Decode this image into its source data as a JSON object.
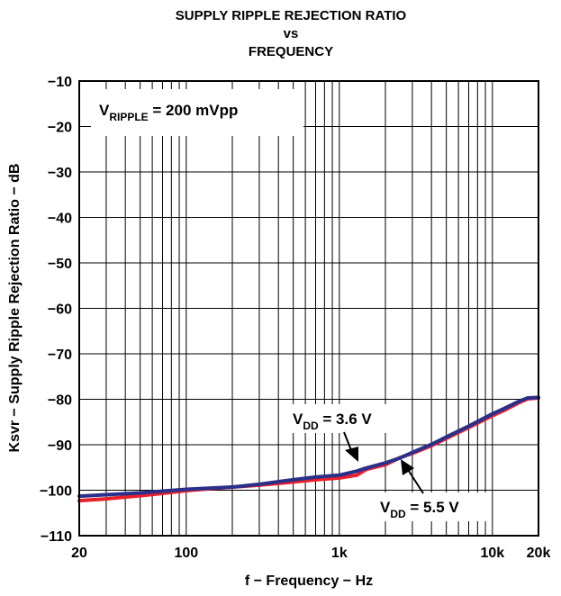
{
  "chart_data": {
    "type": "line",
    "title_lines": [
      "SUPPLY RIPPLE REJECTION RATIO",
      "vs",
      "FREQUENCY"
    ],
    "xlabel": "f − Frequency − Hz",
    "ylabel": "Ksvr − Supply Ripple Rejection Ratio − dB",
    "x_scale": "log",
    "xlim": [
      20,
      20000
    ],
    "ylim": [
      -110,
      -10
    ],
    "x_ticks": [
      20,
      100,
      1000,
      10000,
      20000
    ],
    "x_tick_labels": [
      "20",
      "100",
      "1k",
      "10k",
      "20k"
    ],
    "y_ticks": [
      -10,
      -20,
      -30,
      -40,
      -50,
      -60,
      -70,
      -80,
      -90,
      -100,
      -110
    ],
    "y_tick_labels": [
      "−10",
      "−20",
      "−30",
      "−40",
      "−50",
      "−60",
      "−70",
      "−80",
      "−90",
      "−100",
      "−110"
    ],
    "grid": true,
    "series": [
      {
        "color": "#e8202a",
        "x": [
          20,
          30,
          50,
          70,
          100,
          150,
          200,
          300,
          500,
          700,
          1000,
          1300,
          1500,
          2000,
          2500,
          3000,
          4000,
          5000,
          7000,
          10000,
          12000,
          15000,
          17000,
          20000
        ],
        "y": [
          -102.3,
          -101.9,
          -101.2,
          -100.7,
          -100.1,
          -99.6,
          -99.3,
          -98.9,
          -98.2,
          -97.7,
          -97.3,
          -96.7,
          -95.4,
          -94.4,
          -92.8,
          -91.9,
          -90.2,
          -88.6,
          -86.2,
          -83.6,
          -82.4,
          -80.7,
          -79.9,
          -79.7
        ]
      },
      {
        "color": "#2b2f8c",
        "x": [
          20,
          30,
          50,
          70,
          100,
          150,
          200,
          300,
          500,
          700,
          1000,
          1300,
          1500,
          2000,
          2500,
          3000,
          4000,
          5000,
          7000,
          10000,
          12000,
          15000,
          17000,
          20000
        ],
        "y": [
          -101.3,
          -101.0,
          -100.6,
          -100.2,
          -99.8,
          -99.5,
          -99.3,
          -98.7,
          -97.7,
          -97.1,
          -96.7,
          -95.8,
          -95.1,
          -94.0,
          -92.9,
          -91.7,
          -89.9,
          -88.3,
          -85.9,
          -83.2,
          -82.0,
          -80.4,
          -79.7,
          -79.6
        ]
      }
    ],
    "annotations": [
      {
        "id": "vripple",
        "main": "V",
        "sub": "RIPPLE",
        "tail": " = 200 mVpp"
      },
      {
        "id": "vdd36",
        "main": "V",
        "sub": "DD",
        "tail": " = 3.6 V"
      },
      {
        "id": "vdd55",
        "main": "V",
        "sub": "DD",
        "tail": " = 5.5 V"
      }
    ]
  }
}
